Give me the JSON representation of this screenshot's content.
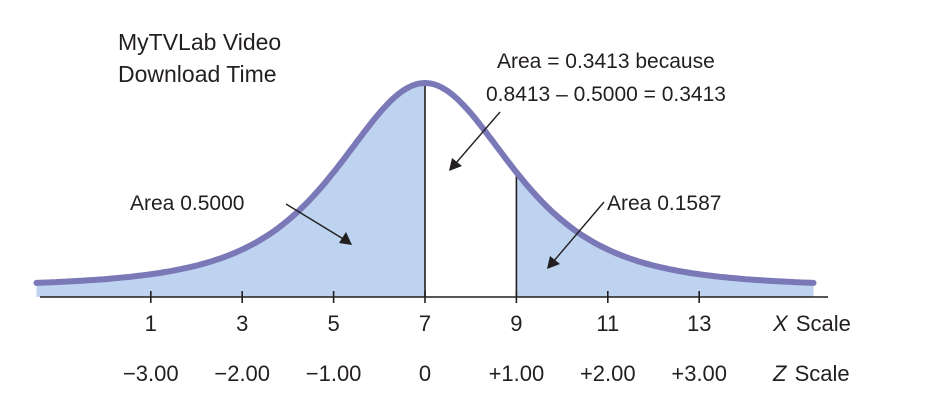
{
  "chart_data": {
    "type": "area",
    "title_lines": [
      "MyTVLab Video",
      "Download Time"
    ],
    "x_scale": {
      "label_letter": "X",
      "label_word": "Scale",
      "ticks": [
        1,
        3,
        5,
        7,
        9,
        11,
        13
      ],
      "tick_labels": [
        "1",
        "3",
        "5",
        "7",
        "9",
        "11",
        "13"
      ],
      "range": [
        -1.5,
        15.5
      ]
    },
    "z_scale": {
      "label_letter": "Z",
      "label_word": "Scale",
      "tick_labels": [
        "−3.00",
        "−2.00",
        "−1.00",
        "0",
        "+1.00",
        "+2.00",
        "+3.00"
      ]
    },
    "distribution": {
      "type": "normal",
      "mean": 7,
      "std_dev": 2
    },
    "shaded_regions": [
      {
        "from_z": null,
        "to_z": 0,
        "area": 0.5
      },
      {
        "from_z": 1,
        "to_z": null,
        "area": 0.1587
      }
    ],
    "unshaded_region": {
      "from_z": 0,
      "to_z": 1,
      "area": 0.3413
    },
    "annotations": {
      "left_area": "Area 0.5000",
      "right_area": "Area 0.1587",
      "middle_line1": "Area = 0.3413 because",
      "middle_line2": "0.8413 – 0.5000 = 0.3413"
    },
    "colors": {
      "curve": "#7b78b8",
      "fill": "#bdd3ef",
      "axis": "#231f20",
      "text": "#231f20"
    }
  }
}
